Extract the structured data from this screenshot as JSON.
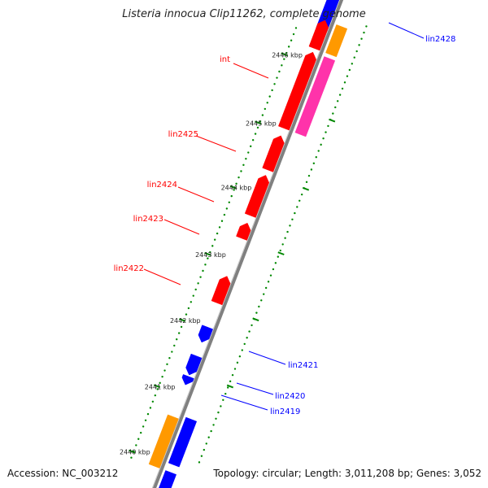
{
  "header": {
    "title": "Listeria innocua Clip11262, complete genome"
  },
  "footer": {
    "accession": "Accession: NC_003212",
    "summary": "Topology: circular; Length: 3,011,208 bp; Genes: 3,052"
  },
  "colors": {
    "backbone": "#808080",
    "forward": "#ff0000",
    "reverse": "#0000ff",
    "int_gene": "#ff33aa",
    "other": "#ff9900",
    "ruler": "#008800"
  },
  "ruler": {
    "unit": "kbp",
    "ticks": [
      {
        "label": "2446 kbp"
      },
      {
        "label": "2445 kbp"
      },
      {
        "label": "2444 kbp"
      },
      {
        "label": "2443 kbp"
      },
      {
        "label": "2442 kbp"
      },
      {
        "label": "2441 kbp"
      },
      {
        "label": "2440 kbp"
      }
    ]
  },
  "gene_labels": [
    {
      "id": "lin2428",
      "text": "lin2428",
      "strand": "reverse"
    },
    {
      "id": "int",
      "text": "int",
      "strand": "forward"
    },
    {
      "id": "lin2425",
      "text": "lin2425",
      "strand": "forward"
    },
    {
      "id": "lin2424",
      "text": "lin2424",
      "strand": "forward"
    },
    {
      "id": "lin2423",
      "text": "lin2423",
      "strand": "forward"
    },
    {
      "id": "lin2422",
      "text": "lin2422",
      "strand": "forward"
    },
    {
      "id": "lin2421",
      "text": "lin2421",
      "strand": "reverse"
    },
    {
      "id": "lin2420",
      "text": "lin2420",
      "strand": "reverse"
    },
    {
      "id": "lin2419",
      "text": "lin2419",
      "strand": "reverse"
    }
  ]
}
